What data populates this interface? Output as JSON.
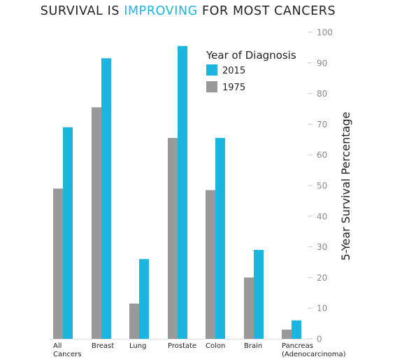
{
  "chart_data": {
    "type": "bar",
    "title_parts": [
      "SURVIVAL IS ",
      "IMPROVING",
      " FOR MOST CANCERS"
    ],
    "title_highlight_color": "#1cb5e0",
    "ylabel": "5-Year Survival Percentage",
    "ylim": [
      0,
      100
    ],
    "yticks": [
      0,
      10,
      20,
      30,
      40,
      50,
      60,
      70,
      80,
      90,
      100
    ],
    "y_axis_side": "right",
    "grid": false,
    "categories": [
      [
        "All",
        "Cancers"
      ],
      [
        "Breast"
      ],
      [
        "Lung"
      ],
      [
        "Prostate"
      ],
      [
        "Colon"
      ],
      [
        "Brain"
      ],
      [
        "Pancreas",
        "(Adenocarcinoma)"
      ]
    ],
    "series": [
      {
        "name": "1975",
        "color": "#999999",
        "values": [
          49,
          75.5,
          11.5,
          65.5,
          48.5,
          20,
          3
        ]
      },
      {
        "name": "2015",
        "color": "#1cb5e0",
        "values": [
          69,
          91.5,
          26,
          95.5,
          65.5,
          29,
          6
        ]
      }
    ],
    "legend": {
      "title": "Year of Diagnosis",
      "order": [
        "2015",
        "1975"
      ],
      "placement": "top-right"
    }
  }
}
